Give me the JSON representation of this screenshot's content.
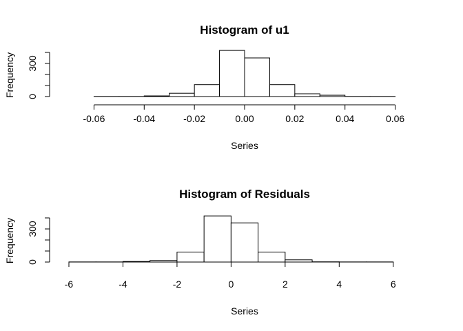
{
  "chart_data": [
    {
      "type": "bar",
      "title": "Histogram of u1",
      "xlabel": "Series",
      "ylabel": "Frequency",
      "xlim": [
        -0.07,
        0.07
      ],
      "ylim": [
        0,
        400
      ],
      "x_ticks": [
        -0.06,
        -0.04,
        -0.02,
        0.0,
        0.02,
        0.04,
        0.06
      ],
      "x_tick_labels": [
        "-0.06",
        "-0.04",
        "-0.02",
        "0.00",
        "0.02",
        "0.04",
        "0.06"
      ],
      "y_ticks": [
        0,
        100,
        200,
        300,
        400
      ],
      "y_tick_labels": [
        "0",
        "",
        "",
        "300",
        ""
      ],
      "bins": [
        {
          "x0": -0.06,
          "x1": -0.05,
          "count": 1
        },
        {
          "x0": -0.05,
          "x1": -0.04,
          "count": 1
        },
        {
          "x0": -0.04,
          "x1": -0.03,
          "count": 6
        },
        {
          "x0": -0.03,
          "x1": -0.02,
          "count": 30
        },
        {
          "x0": -0.02,
          "x1": -0.01,
          "count": 108
        },
        {
          "x0": -0.01,
          "x1": 0.0,
          "count": 418
        },
        {
          "x0": 0.0,
          "x1": 0.01,
          "count": 350
        },
        {
          "x0": 0.01,
          "x1": 0.02,
          "count": 108
        },
        {
          "x0": 0.02,
          "x1": 0.03,
          "count": 25
        },
        {
          "x0": 0.03,
          "x1": 0.04,
          "count": 12
        },
        {
          "x0": 0.04,
          "x1": 0.05,
          "count": 1
        },
        {
          "x0": 0.05,
          "x1": 0.06,
          "count": 1
        }
      ]
    },
    {
      "type": "bar",
      "title": "Histogram of Residuals",
      "xlabel": "Series",
      "ylabel": "Frequency",
      "xlim": [
        -6,
        7
      ],
      "ylim": [
        0,
        400
      ],
      "x_ticks": [
        -6,
        -4,
        -2,
        0,
        2,
        4,
        6
      ],
      "x_tick_labels": [
        "-6",
        "-4",
        "-2",
        "0",
        "2",
        "4",
        "6"
      ],
      "y_ticks": [
        0,
        100,
        200,
        300,
        400
      ],
      "y_tick_labels": [
        "0",
        "",
        "",
        "300",
        ""
      ],
      "bins": [
        {
          "x0": -6,
          "x1": -5,
          "count": 1
        },
        {
          "x0": -5,
          "x1": -4,
          "count": 1
        },
        {
          "x0": -4,
          "x1": -3,
          "count": 5
        },
        {
          "x0": -3,
          "x1": -2,
          "count": 14
        },
        {
          "x0": -2,
          "x1": -1,
          "count": 90
        },
        {
          "x0": -1,
          "x1": 0,
          "count": 418
        },
        {
          "x0": 0,
          "x1": 1,
          "count": 355
        },
        {
          "x0": 1,
          "x1": 2,
          "count": 90
        },
        {
          "x0": 2,
          "x1": 3,
          "count": 20
        },
        {
          "x0": 3,
          "x1": 4,
          "count": 2
        },
        {
          "x0": 4,
          "x1": 5,
          "count": 1
        },
        {
          "x0": 5,
          "x1": 6,
          "count": 1
        }
      ]
    }
  ]
}
